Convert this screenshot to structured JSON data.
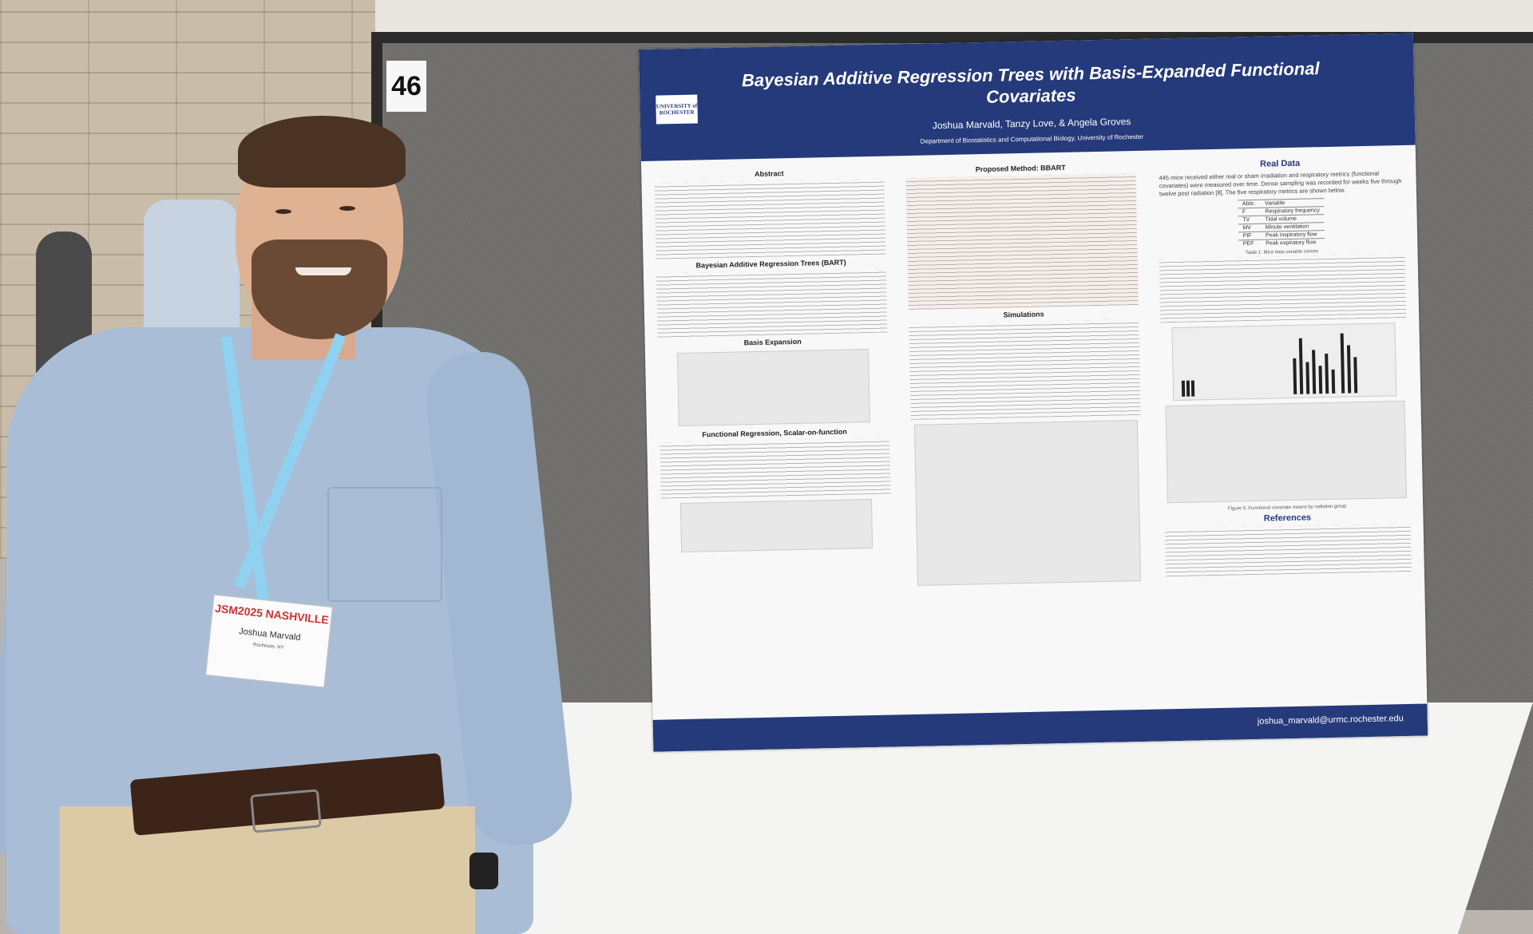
{
  "poster": {
    "title": "Bayesian Additive Regression Trees with Basis-Expanded Functional Covariates",
    "authors": "Joshua Marvald, Tanzy Love, & Angela Groves",
    "department": "Department of Biostatistics and Computational Biology, University of Rochester",
    "logo_text": "UNIVERSITY of ROCHESTER",
    "email": "joshua_marvald@urmc.rochester.edu",
    "sections": {
      "abstract": "Abstract",
      "bart": "Bayesian Additive Regression Trees (BART)",
      "basis_expansion": "Basis Expansion",
      "functional_regression": "Functional Regression, Scalar-on-function",
      "proposed_method": "Proposed Method: BBART",
      "simulations": "Simulations",
      "real_data": "Real Data",
      "references": "References"
    },
    "real_data_intro": "445 mice received either real or sham irradiation and respiratory metrics (functional covariates) were measured over time. Dense sampling was recorded for weeks five through twelve post radiation [8]. The five respiratory metrics are shown below.",
    "table_caption": "Table 1: Mice data variable names",
    "table_header": [
      "Abbr.",
      "Variable"
    ],
    "table_rows": [
      [
        "F",
        "Respiratory frequency"
      ],
      [
        "TV",
        "Tidal volume"
      ],
      [
        "MV",
        "Minute ventilation"
      ],
      [
        "PIF",
        "Peak inspiratory flow"
      ],
      [
        "PEF",
        "Peak expiratory flow"
      ]
    ],
    "figure_5_caption": "Figure 5: Functional covariate means by radiation group"
  },
  "booth": {
    "number": "46"
  },
  "badge": {
    "event": "JSM2025 NASHVILLE",
    "name": "Joshua Marvald",
    "city": "Rochester, NY"
  }
}
